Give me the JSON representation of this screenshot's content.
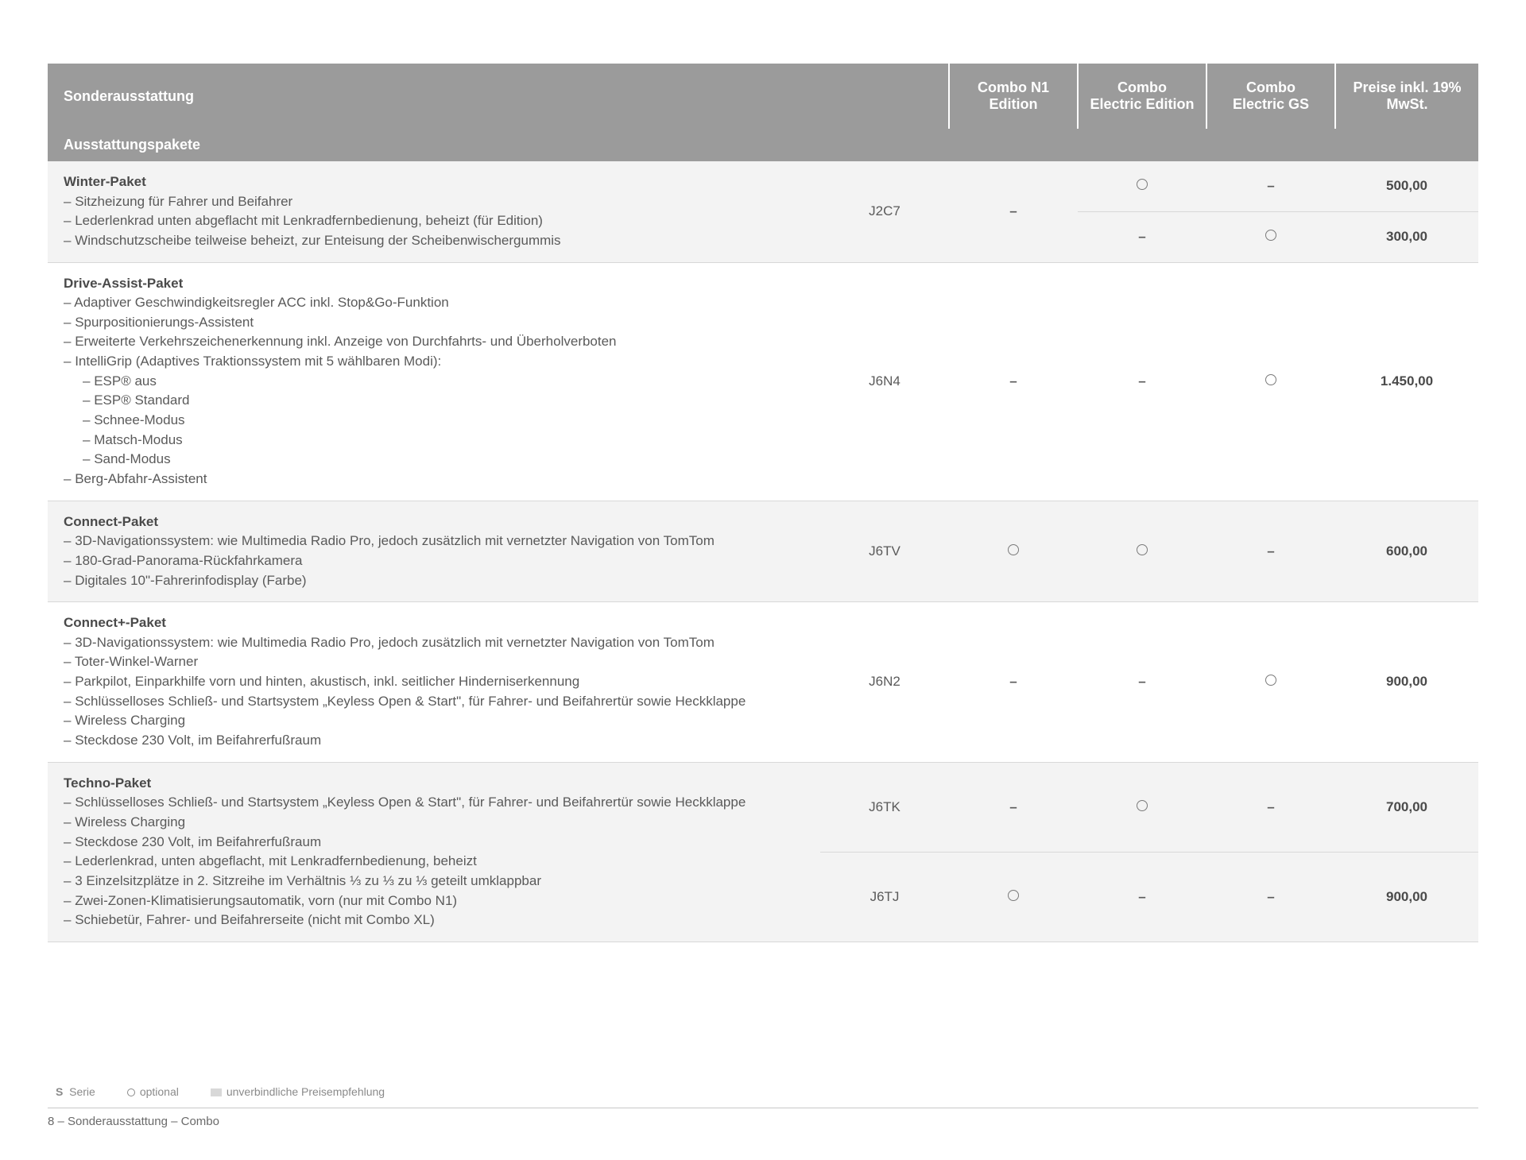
{
  "header": {
    "col_desc": "Sonderausstattung",
    "col_code": "",
    "col_v1": "Combo N1 Edition",
    "col_v2": "Combo Electric Edition",
    "col_v3": "Combo Electric GS",
    "col_price": "Preise inkl. 19% MwSt."
  },
  "section_title": "Ausstattungspakete",
  "packages": [
    {
      "title": "Winter-Paket",
      "lines": [
        "Sitzheizung für Fahrer und Beifahrer",
        "Lederlenkrad unten abgeflacht mit Lenkradfernbedienung, beheizt (für Edition)",
        "Windschutzscheibe teilweise beheizt, zur Enteisung der Scheibenwischergummis"
      ],
      "sublines": [],
      "code": "J2C7",
      "rows": [
        {
          "v1": "–",
          "v2": "○",
          "v3": "–",
          "price": "500,00"
        },
        {
          "v1": "",
          "v2": "–",
          "v3": "○",
          "price": "300,00"
        }
      ],
      "alt": true
    },
    {
      "title": "Drive-Assist-Paket",
      "lines": [
        "Adaptiver Geschwindigkeitsregler ACC inkl. Stop&Go-Funktion",
        "Spurpositionierungs-Assistent",
        "Erweiterte Verkehrszeichenerkennung inkl. Anzeige von Durchfahrts- und Überholverboten",
        "IntelliGrip (Adaptives Traktionssystem mit 5 wählbaren Modi):"
      ],
      "sublines": [
        "ESP® aus",
        "ESP® Standard",
        "Schnee-Modus",
        "Matsch-Modus",
        "Sand-Modus"
      ],
      "lines2": [
        "Berg-Abfahr-Assistent"
      ],
      "code": "J6N4",
      "rows": [
        {
          "v1": "–",
          "v2": "–",
          "v3": "○",
          "price": "1.450,00"
        }
      ],
      "alt": false
    },
    {
      "title": "Connect-Paket",
      "lines": [
        "3D-Navigationssystem: wie Multimedia Radio Pro, jedoch zusätzlich mit vernetzter Navigation von TomTom",
        "180-Grad-Panorama-Rückfahrkamera",
        "Digitales 10\"-Fahrerinfodisplay (Farbe)"
      ],
      "sublines": [],
      "code": "J6TV",
      "rows": [
        {
          "v1": "○",
          "v2": "○",
          "v3": "–",
          "price": "600,00"
        }
      ],
      "alt": true
    },
    {
      "title": "Connect+-Paket",
      "lines": [
        "3D-Navigationssystem: wie Multimedia Radio Pro, jedoch zusätzlich mit vernetzter Navigation von TomTom",
        "Toter-Winkel-Warner",
        "Parkpilot, Einparkhilfe vorn und hinten, akustisch, inkl. seitlicher Hinderniserkennung",
        "Schlüsselloses Schließ- und Startsystem „Keyless Open & Start\", für Fahrer- und Beifahrertür sowie Heckklappe",
        "Wireless Charging",
        "Steckdose 230 Volt, im Beifahrerfußraum"
      ],
      "sublines": [],
      "code": "J6N2",
      "rows": [
        {
          "v1": "–",
          "v2": "–",
          "v3": "○",
          "price": "900,00"
        }
      ],
      "alt": false
    },
    {
      "title": "Techno-Paket",
      "lines": [
        "Schlüsselloses Schließ- und Startsystem „Keyless Open & Start\", für Fahrer- und Beifahrertür sowie Heckklappe",
        "Wireless Charging",
        "Steckdose 230 Volt, im Beifahrerfußraum",
        "Lederlenkrad, unten abgeflacht, mit Lenkradfernbedienung, beheizt",
        "3 Einzelsitzplätze in 2. Sitzreihe im Verhältnis ⅓ zu ⅓ zu ⅓ geteilt umklappbar",
        "Zwei-Zonen-Klimatisierungsautomatik, vorn (nur mit Combo N1)",
        "Schiebetür, Fahrer- und Beifahrerseite (nicht mit Combo XL)"
      ],
      "sublines": [],
      "code_rows": [
        {
          "code": "J6TK",
          "v1": "–",
          "v2": "○",
          "v3": "–",
          "price": "700,00"
        },
        {
          "code": "J6TJ",
          "v1": "○",
          "v2": "–",
          "v3": "–",
          "price": "900,00"
        }
      ],
      "alt": true
    }
  ],
  "legend": {
    "s_label": "S",
    "s_text": "Serie",
    "o_text": "optional",
    "u_text": "unverbindliche Preisempfehlung"
  },
  "footer": "8 – Sonderausstattung – Combo"
}
